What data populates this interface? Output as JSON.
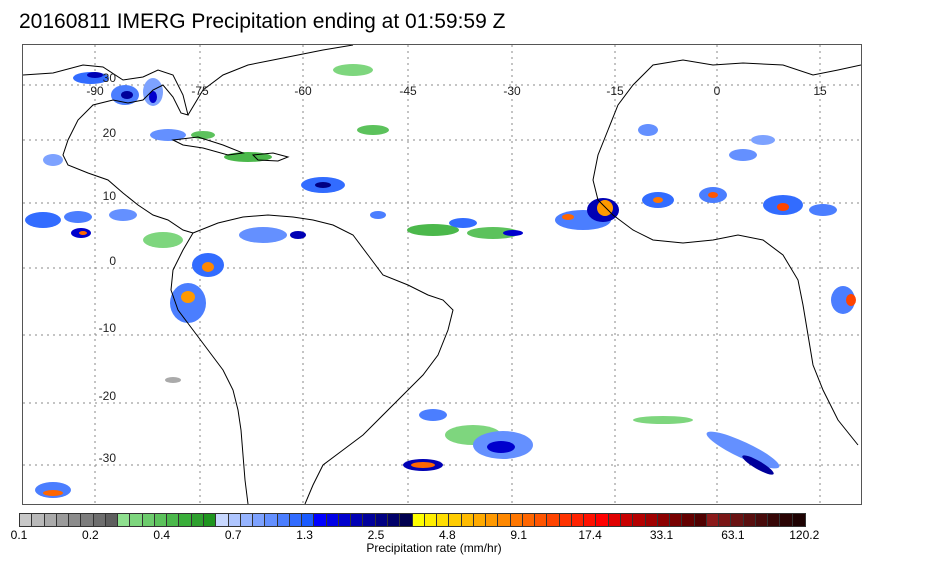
{
  "title": "20160811 IMERG Precipitation ending at 01:59:59 Z",
  "map": {
    "lon_labels": [
      "-90",
      "-75",
      "-60",
      "-45",
      "-30",
      "-15",
      "0",
      "15"
    ],
    "lat_labels": [
      "30",
      "20",
      "10",
      "0",
      "-10",
      "-20",
      "-30"
    ],
    "gridlines": true
  },
  "colorbar": {
    "label": "Precipitation rate (mm/hr)",
    "tick_labels": [
      "0.1",
      "0.2",
      "0.4",
      "0.7",
      "1.3",
      "2.5",
      "4.8",
      "9.1",
      "17.4",
      "33.1",
      "63.1",
      "120.2"
    ],
    "colors": [
      "#c8c8c8",
      "#b9b9b9",
      "#aaaaaa",
      "#9b9b9b",
      "#8c8c8c",
      "#7d7d7d",
      "#6e6e6e",
      "#5f5f5f",
      "#8fe08f",
      "#7ed67e",
      "#6dcc6d",
      "#5cc25c",
      "#4bb84b",
      "#3aae3a",
      "#2ea02e",
      "#1f951f",
      "#c8d8ff",
      "#afc6ff",
      "#96b4ff",
      "#7da2ff",
      "#6490ff",
      "#4b7eff",
      "#326cff",
      "#195aff",
      "#0000ff",
      "#0000e6",
      "#0000cd",
      "#0000b4",
      "#00009b",
      "#000082",
      "#000069",
      "#000050",
      "#ffff00",
      "#ffee00",
      "#ffdd00",
      "#ffcc00",
      "#ffbb00",
      "#ffaa00",
      "#ff9900",
      "#ff8800",
      "#ff7700",
      "#ff6600",
      "#ff5500",
      "#ff4400",
      "#ff3300",
      "#ff2200",
      "#ff1100",
      "#ff0000",
      "#e00000",
      "#c80000",
      "#b40000",
      "#a00000",
      "#8c0000",
      "#780000",
      "#640000",
      "#500000",
      "#8b1a1a",
      "#7a1616",
      "#691212",
      "#580e0e",
      "#470a0a",
      "#360606",
      "#2a0404",
      "#1e0202"
    ]
  }
}
